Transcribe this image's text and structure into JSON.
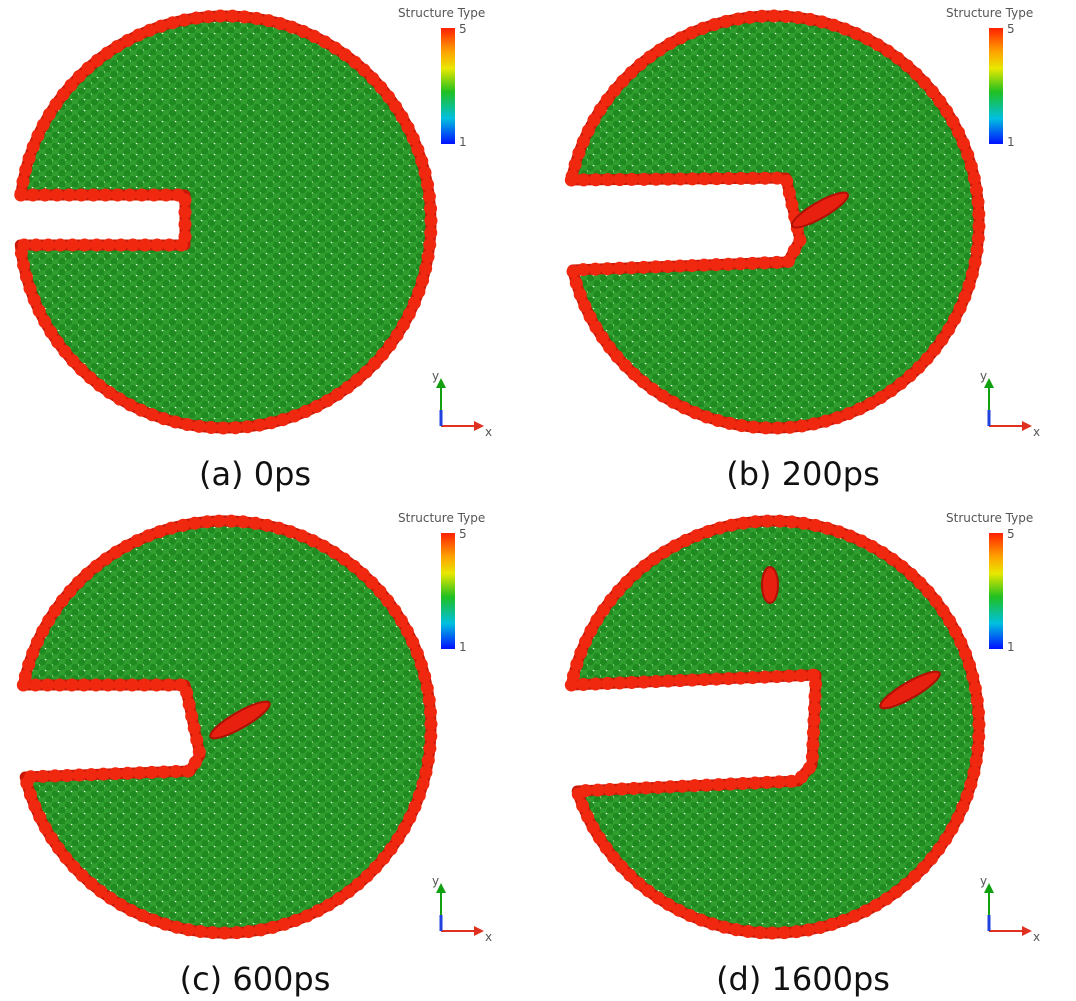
{
  "panels": [
    {
      "caption": "(a) 0ps",
      "legend": {
        "title": "Structure Type",
        "max": 5,
        "min": 1
      },
      "axes": {
        "y": "y",
        "x": "x"
      }
    },
    {
      "caption": "(b) 200ps",
      "legend": {
        "title": "Structure Type",
        "max": 5,
        "min": 1
      },
      "axes": {
        "y": "y",
        "x": "x"
      }
    },
    {
      "caption": "(c) 600ps",
      "legend": {
        "title": "Structure Type",
        "max": 5,
        "min": 1
      },
      "axes": {
        "y": "y",
        "x": "x"
      }
    },
    {
      "caption": "(d) 1600ps",
      "legend": {
        "title": "Structure Type",
        "max": 5,
        "min": 1
      },
      "axes": {
        "y": "y",
        "x": "x"
      }
    }
  ]
}
